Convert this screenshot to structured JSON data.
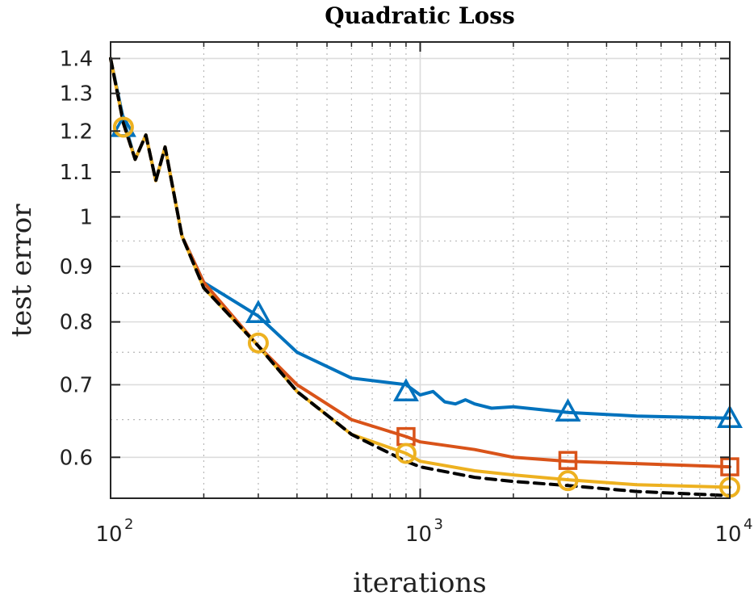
{
  "chart_data": {
    "type": "line",
    "title": "Quadratic Loss",
    "xlabel": "iterations",
    "ylabel": "test error",
    "xscale": "log",
    "yscale": "log",
    "xlim": [
      100,
      10000
    ],
    "ylim": [
      0.55,
      1.45
    ],
    "grid": true,
    "minor_grid": true,
    "x_ticks": [
      {
        "value": 100,
        "base": "10",
        "exp": "2"
      },
      {
        "value": 1000,
        "base": "10",
        "exp": "3"
      },
      {
        "value": 10000,
        "base": "10",
        "exp": "4"
      }
    ],
    "y_ticks": [
      {
        "value": 0.6,
        "label": "0.6"
      },
      {
        "value": 0.7,
        "label": "0.7"
      },
      {
        "value": 0.8,
        "label": "0.8"
      },
      {
        "value": 0.9,
        "label": "0.9"
      },
      {
        "value": 1.0,
        "label": "1"
      },
      {
        "value": 1.1,
        "label": "1.1"
      },
      {
        "value": 1.2,
        "label": "1.2"
      },
      {
        "value": 1.3,
        "label": "1.3"
      },
      {
        "value": 1.4,
        "label": "1.4"
      }
    ],
    "series": [
      {
        "name": "blue",
        "color": "#0072BD",
        "dash": "",
        "marker": "triangle",
        "x": [
          100,
          110,
          120,
          130,
          140,
          150,
          170,
          200,
          300,
          400,
          600,
          900,
          1000,
          1100,
          1200,
          1300,
          1400,
          1500,
          1700,
          2000,
          3000,
          5000,
          10000
        ],
        "y": [
          1.4,
          1.23,
          1.13,
          1.19,
          1.08,
          1.16,
          0.96,
          0.87,
          0.81,
          0.75,
          0.71,
          0.7,
          0.685,
          0.69,
          0.675,
          0.672,
          0.678,
          0.672,
          0.666,
          0.668,
          0.66,
          0.655,
          0.652
        ],
        "marker_x": [
          110,
          300,
          900,
          3000,
          10000
        ],
        "marker_y": [
          1.21,
          0.815,
          0.69,
          0.661,
          0.652
        ]
      },
      {
        "name": "red",
        "color": "#D95319",
        "dash": "",
        "marker": "square",
        "x": [
          100,
          110,
          120,
          130,
          140,
          150,
          170,
          200,
          300,
          400,
          600,
          900,
          1000,
          1500,
          2000,
          3000,
          5000,
          10000
        ],
        "y": [
          1.4,
          1.22,
          1.13,
          1.19,
          1.08,
          1.16,
          0.96,
          0.87,
          0.76,
          0.7,
          0.65,
          0.627,
          0.62,
          0.61,
          0.6,
          0.595,
          0.592,
          0.588
        ],
        "marker_x": [
          900,
          3000,
          10000
        ],
        "marker_y": [
          0.627,
          0.596,
          0.588
        ]
      },
      {
        "name": "yellow",
        "color": "#EDB120",
        "dash": "",
        "marker": "circle",
        "x": [
          100,
          110,
          120,
          130,
          140,
          150,
          170,
          200,
          300,
          400,
          600,
          900,
          1000,
          1500,
          2000,
          3000,
          5000,
          10000
        ],
        "y": [
          1.4,
          1.22,
          1.13,
          1.19,
          1.08,
          1.16,
          0.96,
          0.86,
          0.76,
          0.69,
          0.63,
          0.605,
          0.595,
          0.583,
          0.578,
          0.572,
          0.566,
          0.563
        ],
        "marker_x": [
          110,
          300,
          900,
          3000,
          10000
        ],
        "marker_y": [
          1.21,
          0.765,
          0.605,
          0.571,
          0.563
        ]
      },
      {
        "name": "black-dashed",
        "color": "#000000",
        "dash": "12,8",
        "marker": "none",
        "x": [
          100,
          110,
          120,
          130,
          140,
          150,
          170,
          200,
          300,
          400,
          600,
          900,
          1000,
          1500,
          2000,
          3000,
          5000,
          10000
        ],
        "y": [
          1.4,
          1.22,
          1.13,
          1.19,
          1.08,
          1.16,
          0.96,
          0.86,
          0.76,
          0.69,
          0.63,
          0.595,
          0.588,
          0.575,
          0.57,
          0.565,
          0.558,
          0.553
        ],
        "marker_x": [],
        "marker_y": []
      }
    ]
  }
}
